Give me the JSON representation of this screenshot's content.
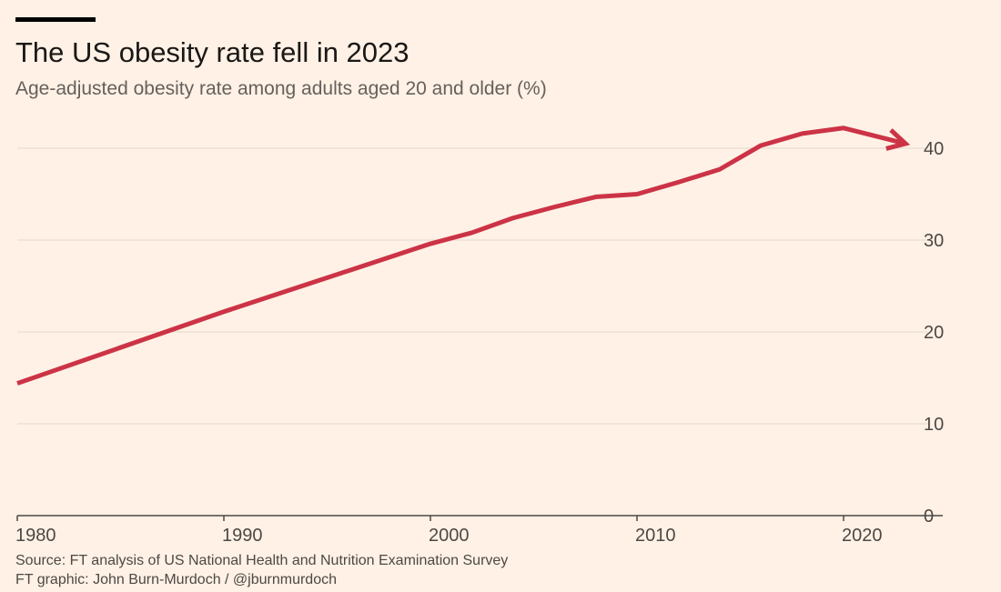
{
  "chart_data": {
    "type": "line",
    "title": "The US obesity rate fell in 2023",
    "subtitle": "Age-adjusted obesity rate among adults aged 20 and older (%)",
    "xlabel": "",
    "ylabel": "",
    "xlim": [
      1980,
      2024.5
    ],
    "ylim": [
      0,
      45
    ],
    "x_ticks": [
      1980,
      1990,
      2000,
      2010,
      2020
    ],
    "y_ticks": [
      0,
      10,
      20,
      30,
      40
    ],
    "grid": true,
    "y_axis_position": "right",
    "series": [
      {
        "name": "Obesity rate",
        "color": "#cc3346",
        "x": [
          1980,
          1990,
          2000,
          2002,
          2004,
          2006,
          2008,
          2010,
          2012,
          2014,
          2016,
          2018,
          2020,
          2023
        ],
        "y": [
          14.4,
          22.2,
          29.6,
          30.8,
          32.4,
          33.6,
          34.7,
          35.0,
          36.3,
          37.7,
          40.3,
          41.6,
          42.2,
          40.5
        ]
      }
    ],
    "source": "Source: FT analysis of US National Health and Nutrition Examination Survey",
    "credit": "FT graphic: John Burn-Murdoch / @jburnmurdoch"
  }
}
